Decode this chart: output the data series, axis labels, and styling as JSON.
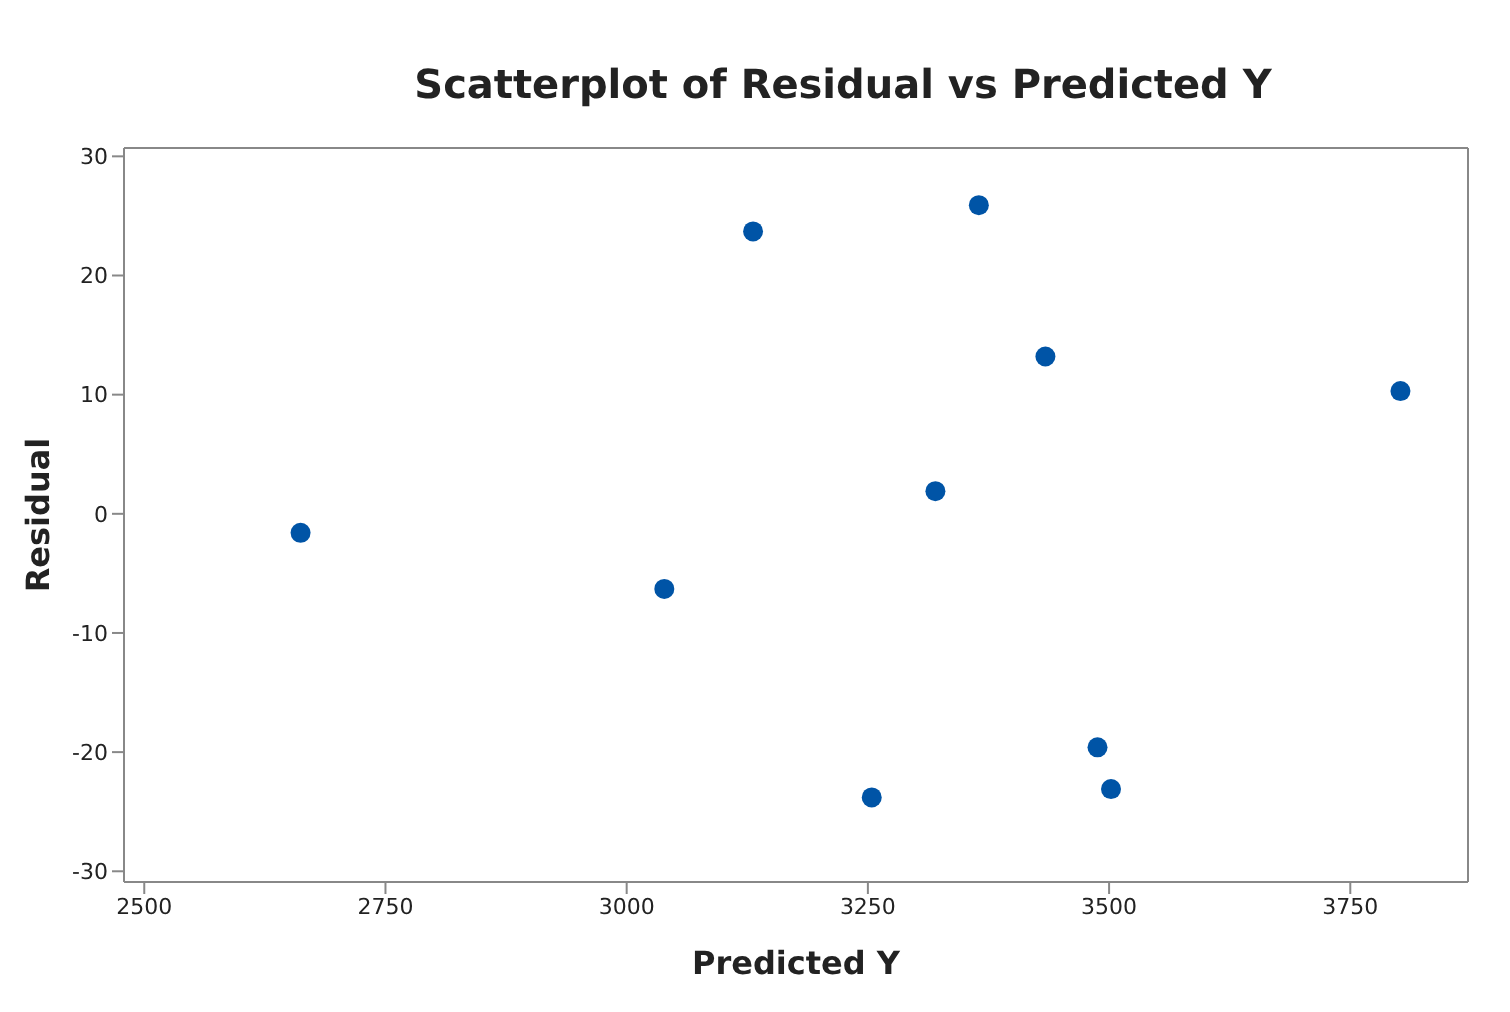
{
  "chart_data": {
    "type": "scatter",
    "title": "Scatterplot of Residual vs Predicted Y",
    "xlabel": "Predicted Y",
    "ylabel": "Residual",
    "x": [
      2662,
      3039,
      3131,
      3254,
      3320,
      3365,
      3434,
      3488,
      3502,
      3802
    ],
    "series": [
      {
        "color": "#0054a6",
        "values": [
          -1.6,
          -6.3,
          23.7,
          -23.8,
          1.9,
          25.9,
          13.2,
          -19.6,
          -23.1,
          10.3
        ]
      }
    ],
    "xlim": [
      2479,
      3872
    ],
    "xticks": [
      2500,
      2750,
      3000,
      3250,
      3500,
      3750
    ],
    "ylim": [
      -30.9,
      30.7
    ],
    "yticks": [
      -30,
      -20,
      -10,
      0,
      10,
      20,
      30
    ],
    "grid": false,
    "legend": false,
    "marker": "circle"
  }
}
